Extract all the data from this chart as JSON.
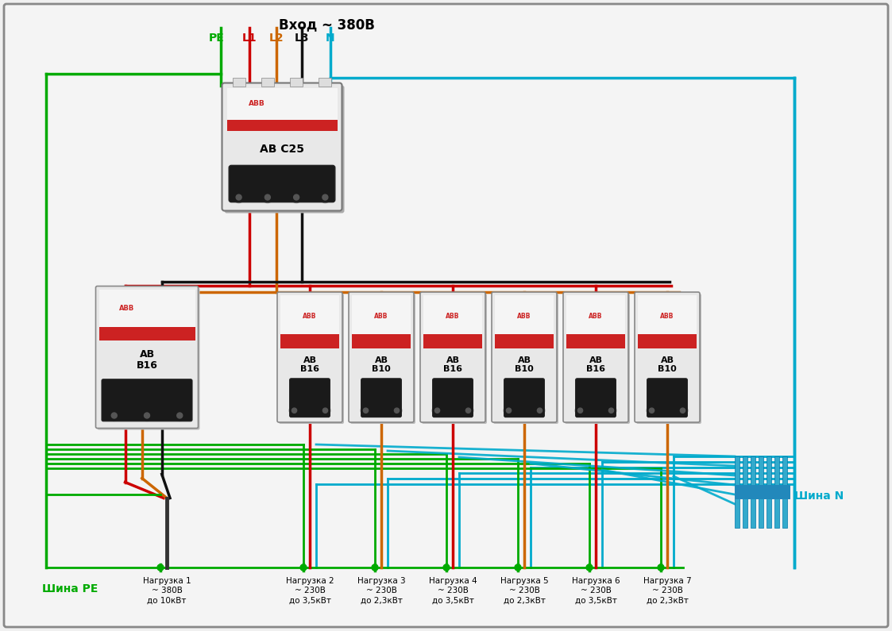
{
  "title": "Вход ~ 380В",
  "bg_color": "#f0f0f0",
  "border_color": "#999999",
  "wire_colors": {
    "PE": "#00aa00",
    "L1": "#cc0000",
    "L2": "#cc6600",
    "L3": "#111111",
    "N": "#00aacc"
  },
  "shina_PE": "Шина PE",
  "shina_N": "Шина N",
  "load_labels": [
    "Нагрузка 1\n~ 380В\nдо 10кВт",
    "Нагрузка 2\n~ 230В\nдо 3,5кВт",
    "Нагрузка 3\n~ 230В\nдо 2,3кВт",
    "Нагрузка 4\n~ 230В\nдо 3,5кВт",
    "Нагрузка 5\n~ 230В\nдо 2,3кВт",
    "Нагрузка 6\n~ 230В\nдо 3,5кВт",
    "Нагрузка 7\n~ 230В\nдо 2,3кВт"
  ],
  "sp_labels": [
    "АВ\nB16",
    "АВ\nB10",
    "АВ\nB16",
    "АВ\nB10",
    "АВ\nB16",
    "АВ\nB10"
  ],
  "sp_phases": [
    "L1",
    "L2",
    "L1",
    "L2",
    "L1",
    "L2"
  ]
}
